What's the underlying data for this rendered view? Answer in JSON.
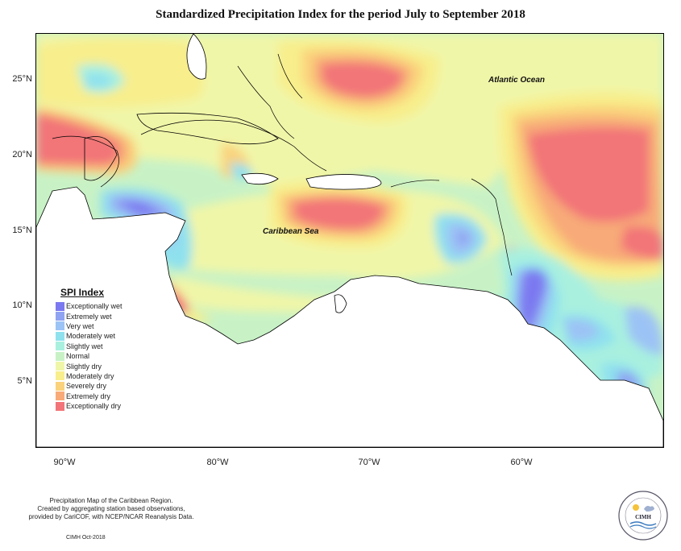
{
  "title": "Standardized Precipitation Index for the period July to September 2018",
  "labels": {
    "ocean": "Atlantic Ocean",
    "sea": "Caribbean Sea"
  },
  "axes": {
    "lat_ticks": [
      "25°N",
      "20°N",
      "15°N",
      "10°N",
      "5°N"
    ],
    "lon_ticks": [
      "90°W",
      "80°W",
      "70°W",
      "60°W"
    ]
  },
  "legend": {
    "title": "SPI Index",
    "items": [
      {
        "label": "Exceptionally wet",
        "color": "#7b79f0"
      },
      {
        "label": "Extremely wet",
        "color": "#8fa3f2"
      },
      {
        "label": "Very wet",
        "color": "#9cc3f5"
      },
      {
        "label": "Moderately wet",
        "color": "#8fe1ee"
      },
      {
        "label": "Slightly wet",
        "color": "#a9f0df"
      },
      {
        "label": "Normal",
        "color": "#c8f2c6"
      },
      {
        "label": "Slightly dry",
        "color": "#f0f6a8"
      },
      {
        "label": "Moderately dry",
        "color": "#f8ee8c"
      },
      {
        "label": "Severely dry",
        "color": "#fad27c"
      },
      {
        "label": "Extremely dry",
        "color": "#f8aa78"
      },
      {
        "label": "Exceptionally dry",
        "color": "#f27478"
      }
    ]
  },
  "footer": {
    "line1": "Precipitation Map of the Caribbean Region.",
    "line2": "Created by aggregating station based observations,",
    "line3": "provided by CariCOF, with NCEP/NCAR Reanalysis Data.",
    "credit": "CIMH Oct-2018"
  },
  "logo": {
    "text": "CIMH"
  }
}
